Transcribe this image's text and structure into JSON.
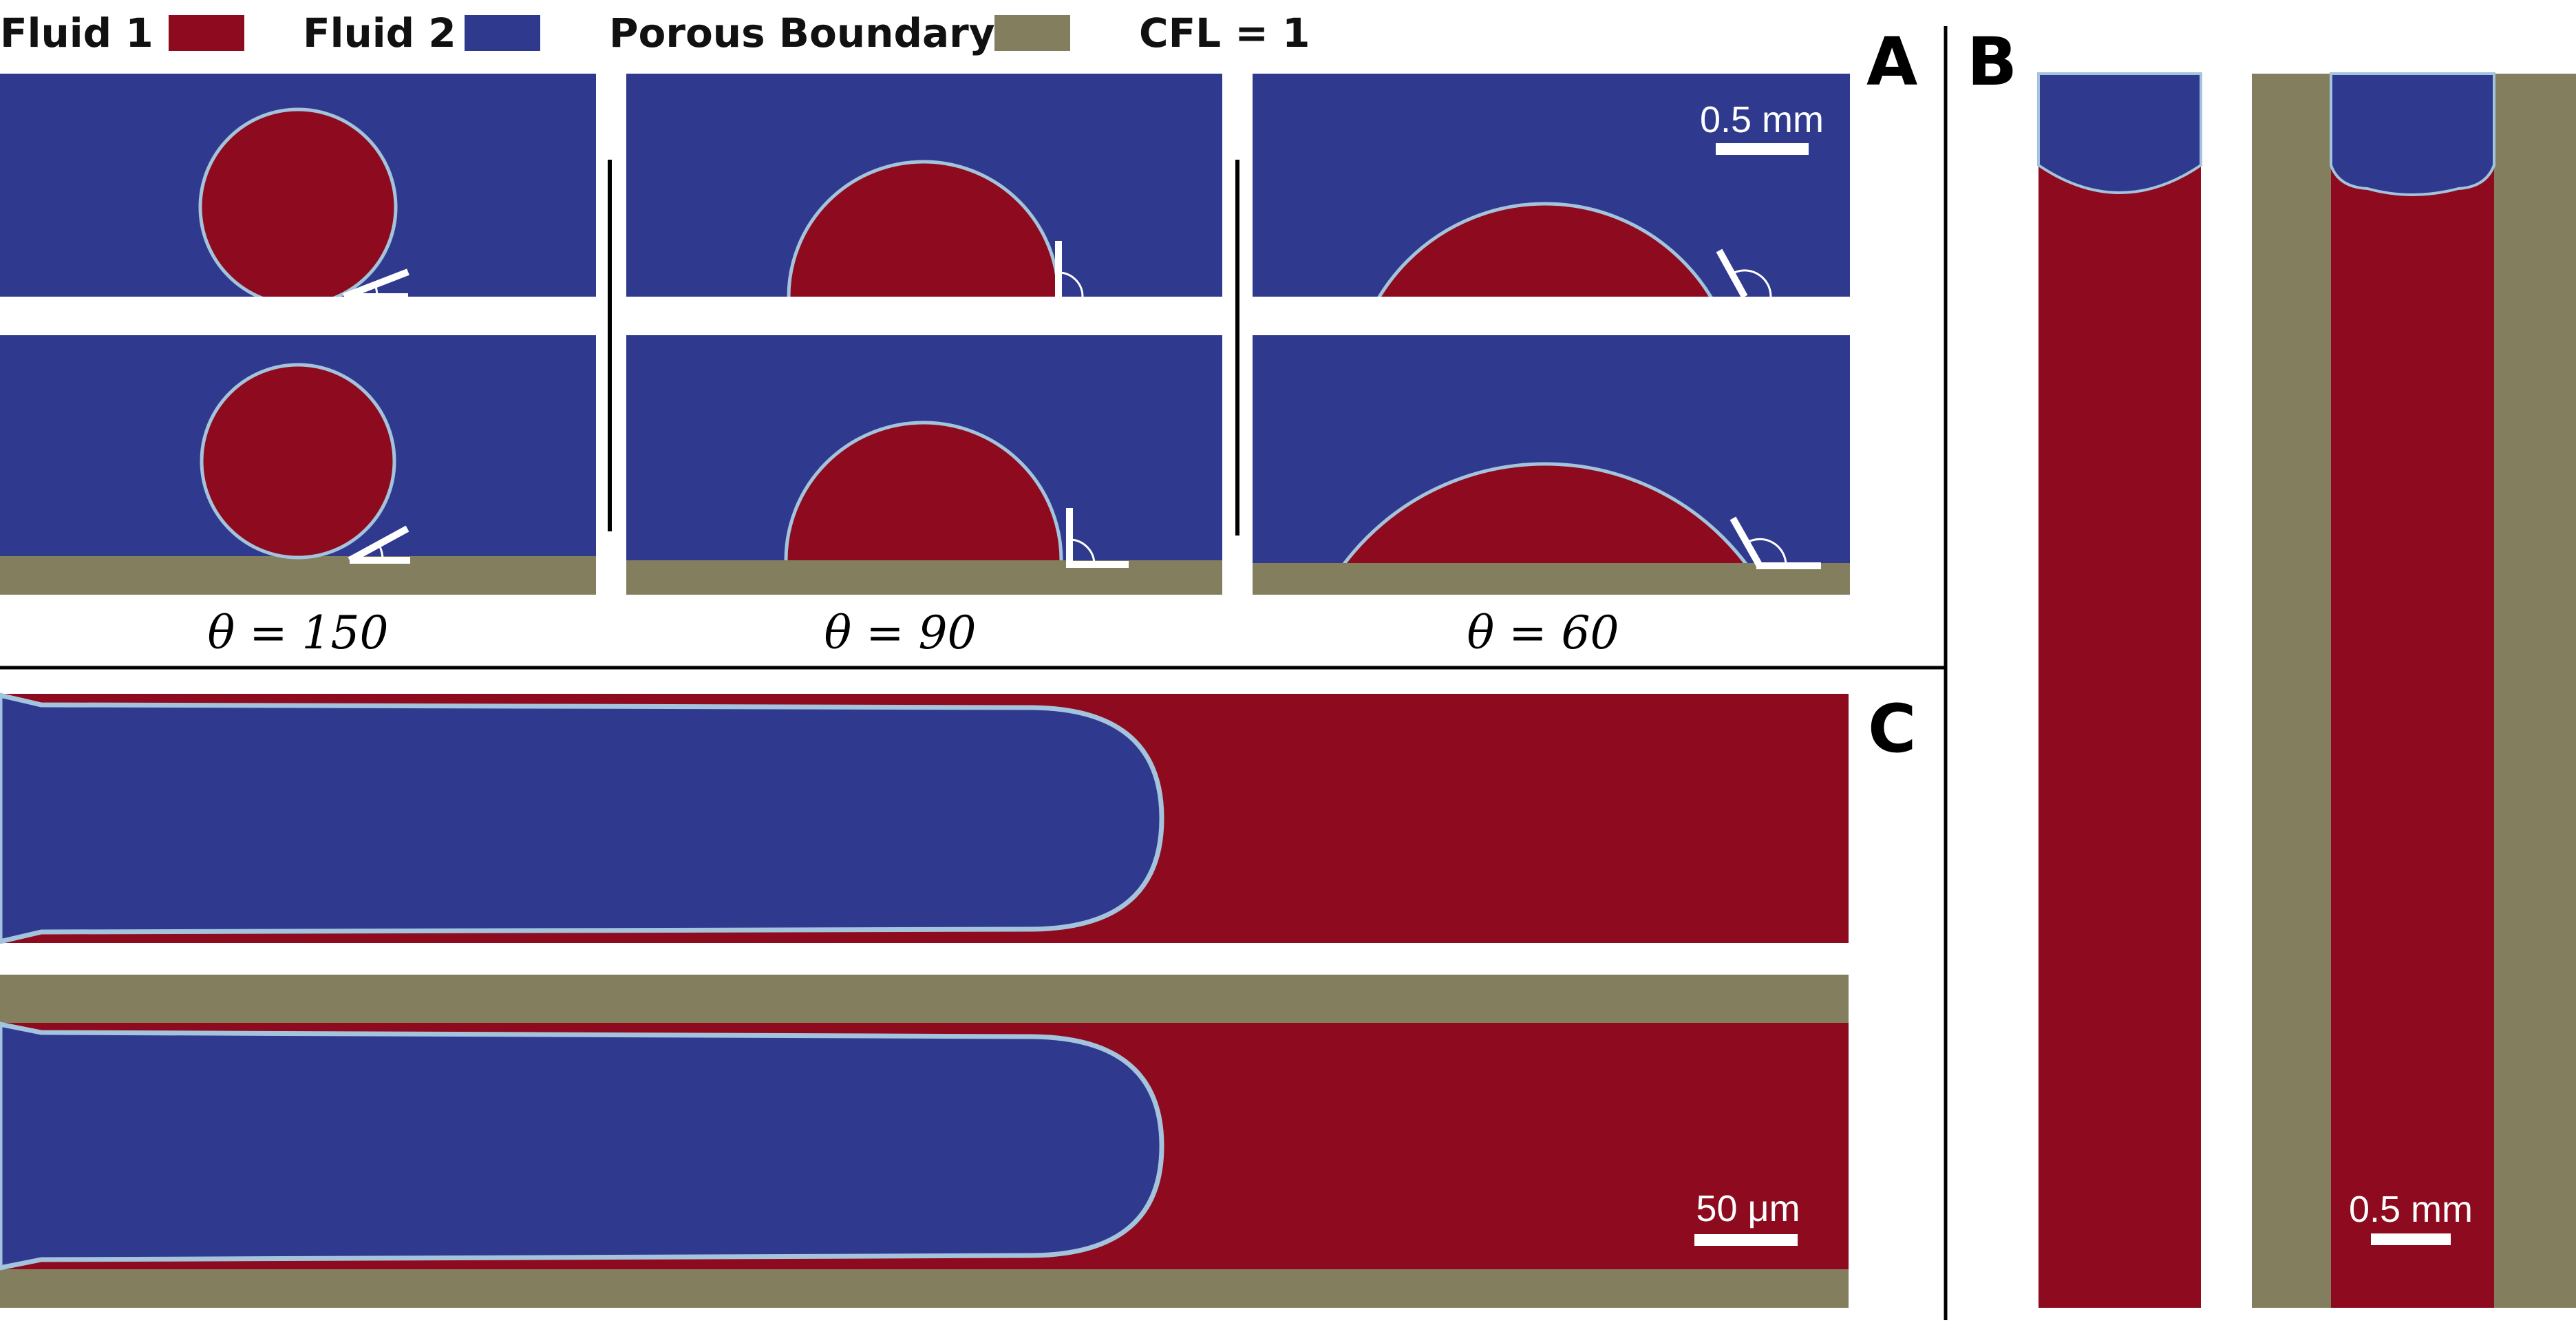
{
  "legend": {
    "fluid1": {
      "label": "Fluid 1",
      "color": "#8e0a1e"
    },
    "fluid2": {
      "label": "Fluid 2",
      "color": "#2f3a8f"
    },
    "porous": {
      "label": "Porous Boundary",
      "color": "#837f5e"
    },
    "cfl": {
      "label": "CFL = 1"
    }
  },
  "panels": {
    "a": {
      "letter": "A",
      "scale_bar": "0.5 mm",
      "angles": [
        {
          "label": "θ = 150",
          "value": 150
        },
        {
          "label": "θ = 90",
          "value": 90
        },
        {
          "label": "θ = 60",
          "value": 60
        }
      ]
    },
    "b": {
      "letter": "B",
      "scale_bar": "0.5 mm"
    },
    "c": {
      "letter": "C",
      "scale_bar": "50 μm"
    }
  }
}
